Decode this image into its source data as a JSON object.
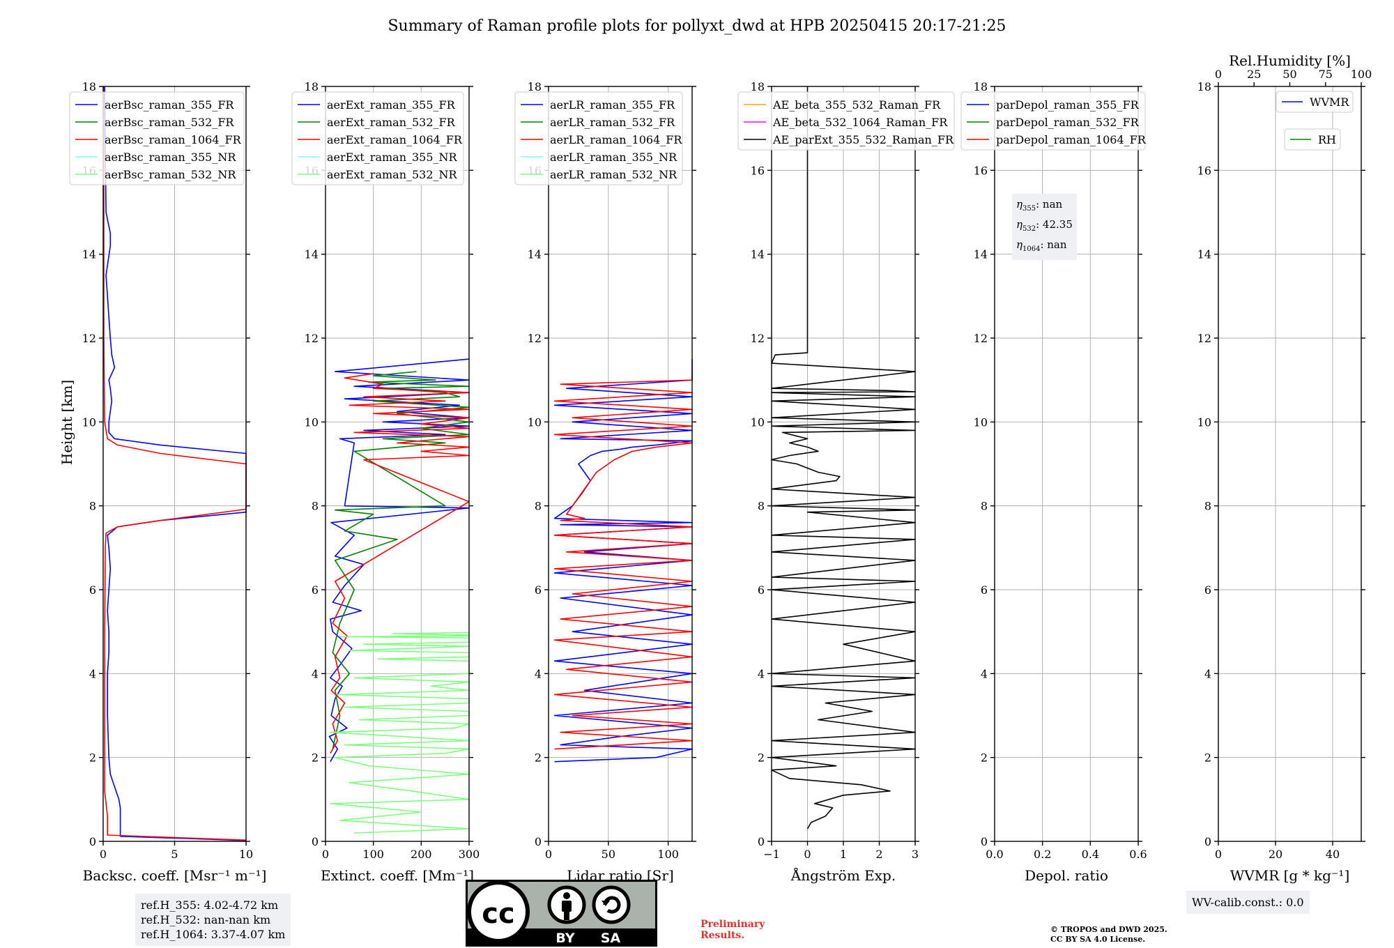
{
  "figure": {
    "title": "Summary of Raman profile plots for pollyxt_dwd at HPB 20250415 20:17-21:25",
    "ylabel": "Height [km]"
  },
  "colors": {
    "ch355": "#0000ff",
    "ch532": "#008000",
    "ch1064": "#ff0000",
    "nr355": "#7fffff",
    "nr532": "#7fff7f",
    "orange": "#ffa500",
    "magenta": "#ff00ff",
    "black": "#000000"
  },
  "chart_data": [
    {
      "type": "line",
      "xlabel": "Backsc. coeff. [Msr⁻¹ m⁻¹]",
      "xlim": [
        0,
        10
      ],
      "ylim": [
        0,
        18
      ],
      "grid": true,
      "xticks": [
        "0",
        "5",
        "10"
      ],
      "yticks": [
        "0",
        "2",
        "4",
        "6",
        "8",
        "10",
        "12",
        "14",
        "16",
        "18"
      ],
      "legend_placement": "top-left",
      "series": [
        {
          "name": "aerBsc_raman_355_FR",
          "color": "#0000ff",
          "x": [
            10,
            1.2,
            1.2,
            1.1,
            0.8,
            0.5,
            0.4,
            0.3,
            0.3,
            0.4,
            0.4,
            0.3,
            0.4,
            0.5,
            0.4,
            0.3,
            1.0,
            4.0,
            10,
            10,
            4.0,
            0.8,
            0.4,
            0.4,
            0.6,
            0.5,
            0.4,
            0.8,
            0.6,
            0.5,
            0.4,
            0.3,
            0.2,
            0.5,
            0.5,
            0.2,
            0.1
          ],
          "y": [
            0.02,
            0.12,
            0.8,
            1.0,
            1.3,
            1.6,
            2,
            3,
            4,
            4.5,
            5,
            5.5,
            6,
            6.5,
            7,
            7.3,
            7.5,
            7.65,
            7.85,
            9.25,
            9.45,
            9.6,
            9.75,
            10,
            10.5,
            10.8,
            11,
            11.3,
            11.6,
            12,
            12.5,
            13,
            13.5,
            14.2,
            14.5,
            15,
            18
          ]
        },
        {
          "name": "aerBsc_raman_532_FR",
          "color": "#008000",
          "x": [],
          "y": []
        },
        {
          "name": "aerBsc_raman_1064_FR",
          "color": "#ff0000",
          "x": [
            10,
            0.3,
            0.3,
            0.1,
            0.1,
            0.15,
            0.2,
            1.0,
            4.0,
            10,
            10,
            4.0,
            1.0,
            0.3,
            0.1,
            0.05,
            0.05
          ],
          "y": [
            0.03,
            0.15,
            0.6,
            1.2,
            5,
            7,
            7.35,
            7.5,
            7.65,
            7.92,
            9.0,
            9.25,
            9.45,
            9.6,
            10,
            12,
            18
          ]
        },
        {
          "name": "aerBsc_raman_355_NR",
          "color": "#7fffff",
          "x": [],
          "y": []
        },
        {
          "name": "aerBsc_raman_532_NR",
          "color": "#7fff7f",
          "x": [],
          "y": []
        }
      ]
    },
    {
      "type": "line",
      "xlabel": "Extinct. coeff. [Mm⁻¹]",
      "xlim": [
        0,
        300
      ],
      "ylim": [
        0,
        18
      ],
      "grid": true,
      "xticks": [
        "0",
        "100",
        "200",
        "300"
      ],
      "yticks": [
        "0",
        "2",
        "4",
        "6",
        "8",
        "10",
        "12",
        "14",
        "16",
        "18"
      ],
      "legend_placement": "top-left",
      "series": [
        {
          "name": "aerExt_raman_355_FR",
          "color": "#0000ff",
          "x": [
            10,
            25,
            8,
            45,
            12,
            20,
            35,
            10,
            30,
            55,
            15,
            10,
            75,
            15,
            40,
            80,
            20,
            60,
            12,
            300,
            40,
            60,
            30,
            250,
            80,
            300,
            120,
            300,
            150,
            280,
            40,
            300,
            60,
            300,
            20,
            300
          ],
          "y": [
            1.9,
            2.2,
            2.5,
            2.7,
            3.0,
            3.4,
            3.7,
            3.9,
            4.2,
            4.6,
            5.0,
            5.3,
            5.5,
            5.7,
            6.1,
            6.6,
            6.8,
            7.3,
            7.6,
            7.95,
            8.0,
            9.5,
            9.6,
            9.7,
            9.8,
            9.9,
            10.0,
            10.1,
            10.25,
            10.4,
            10.55,
            10.7,
            10.85,
            11.0,
            11.2,
            11.5
          ]
        },
        {
          "name": "aerExt_raman_532_FR",
          "color": "#008000",
          "x": [
            15,
            30,
            20,
            50,
            15,
            30,
            60,
            20,
            150,
            40,
            100,
            20,
            250,
            60,
            250,
            120,
            300,
            200,
            300,
            150,
            300,
            100,
            280,
            250,
            120,
            300,
            90,
            230,
            100,
            190
          ],
          "y": [
            2.2,
            3.0,
            3.6,
            4.0,
            4.5,
            5.2,
            6.0,
            6.7,
            7.2,
            7.4,
            7.8,
            7.9,
            8.0,
            9.3,
            9.5,
            9.6,
            9.7,
            9.85,
            10.0,
            10.2,
            10.35,
            10.5,
            10.6,
            10.7,
            10.8,
            10.85,
            10.95,
            11.0,
            11.1,
            11.2
          ]
        },
        {
          "name": "aerExt_raman_1064_FR",
          "color": "#ff0000",
          "x": [
            10,
            25,
            15,
            40,
            12,
            30,
            20,
            45,
            15,
            40,
            20,
            300,
            80,
            300,
            200,
            300,
            150,
            300,
            60,
            300,
            200,
            300,
            100,
            300,
            50,
            250,
            80,
            300,
            100,
            120,
            40,
            100
          ],
          "y": [
            2.1,
            2.4,
            2.8,
            3.3,
            3.6,
            3.9,
            4.4,
            4.9,
            5.2,
            5.8,
            6.2,
            8.1,
            9.1,
            9.2,
            9.3,
            9.4,
            9.5,
            9.65,
            9.75,
            9.85,
            9.95,
            10.1,
            10.2,
            10.3,
            10.4,
            10.5,
            10.6,
            10.7,
            10.8,
            10.9,
            11.05,
            11.15
          ]
        },
        {
          "name": "aerExt_raman_355_NR",
          "color": "#7fffff",
          "x": [],
          "y": []
        },
        {
          "name": "aerExt_raman_532_NR",
          "color": "#7fff7f",
          "x": [
            60,
            300,
            30,
            200,
            10,
            300,
            180,
            50,
            300,
            90,
            20,
            250,
            300,
            40,
            300,
            160,
            10,
            270,
            300,
            70,
            300,
            300,
            40,
            300,
            300,
            25,
            300,
            220,
            300,
            60,
            300,
            300,
            300,
            300,
            110,
            300,
            300,
            50,
            180,
            300,
            80,
            300,
            300,
            300,
            30,
            300,
            300,
            140,
            300
          ],
          "y": [
            0.2,
            0.3,
            0.5,
            0.7,
            0.9,
            1.0,
            1.2,
            1.4,
            1.6,
            1.8,
            2.0,
            2.1,
            2.2,
            2.3,
            2.4,
            2.5,
            2.6,
            2.7,
            2.8,
            2.9,
            3.0,
            3.1,
            3.2,
            3.3,
            3.4,
            3.5,
            3.6,
            3.7,
            3.8,
            3.9,
            4.0,
            4.1,
            4.2,
            4.3,
            4.35,
            4.4,
            4.5,
            4.55,
            4.6,
            4.65,
            4.7,
            4.75,
            4.8,
            4.85,
            4.88,
            4.9,
            4.92,
            4.95,
            4.98
          ]
        }
      ]
    },
    {
      "type": "line",
      "xlabel": "Lidar ratio [Sr]",
      "xlim": [
        0,
        120
      ],
      "ylim": [
        0,
        18
      ],
      "grid": true,
      "xticks": [
        "0",
        "50",
        "100"
      ],
      "yticks": [
        "0",
        "2",
        "4",
        "6",
        "8",
        "10",
        "12",
        "14",
        "16",
        "18"
      ],
      "legend_placement": "top-left",
      "series": [
        {
          "name": "aerLR_raman_355_FR",
          "color": "#0000ff",
          "x": [
            5,
            90,
            120,
            10,
            60,
            120,
            5,
            120,
            30,
            120,
            5,
            120,
            20,
            120,
            10,
            120,
            5,
            120,
            30,
            120,
            5,
            120,
            10,
            120,
            5,
            10,
            20,
            28,
            35,
            30,
            25,
            35,
            45,
            60,
            70,
            90,
            120,
            10,
            120,
            20,
            120,
            5,
            120,
            15,
            120,
            120
          ],
          "y": [
            1.9,
            2.0,
            2.2,
            2.3,
            2.5,
            2.7,
            3.0,
            3.3,
            3.6,
            4.0,
            4.3,
            4.7,
            5.0,
            5.4,
            5.8,
            6.1,
            6.4,
            6.7,
            6.9,
            7.1,
            7.3,
            7.5,
            7.55,
            7.6,
            7.7,
            7.8,
            8.0,
            8.3,
            8.6,
            8.8,
            9.0,
            9.2,
            9.3,
            9.35,
            9.4,
            9.45,
            9.55,
            9.6,
            9.8,
            10.0,
            10.2,
            10.4,
            10.6,
            10.8,
            11.0,
            11.5
          ]
        },
        {
          "name": "aerLR_raman_532_FR",
          "color": "#008000",
          "x": [],
          "y": []
        },
        {
          "name": "aerLR_raman_1064_FR",
          "color": "#ff0000",
          "x": [
            5,
            120,
            10,
            120,
            20,
            120,
            5,
            120,
            15,
            120,
            5,
            120,
            10,
            120,
            20,
            120,
            5,
            120,
            15,
            120,
            5,
            120,
            10,
            30,
            15,
            20,
            30,
            40,
            55,
            70,
            90,
            120,
            5,
            120,
            20,
            120,
            5,
            120,
            10,
            120,
            120
          ],
          "y": [
            2.2,
            2.4,
            2.6,
            2.8,
            3.0,
            3.2,
            3.5,
            3.8,
            4.1,
            4.4,
            4.8,
            5.0,
            5.3,
            5.6,
            5.9,
            6.2,
            6.5,
            6.7,
            6.9,
            7.1,
            7.3,
            7.5,
            7.65,
            7.7,
            7.8,
            8.0,
            8.4,
            8.8,
            9.1,
            9.3,
            9.4,
            9.5,
            9.7,
            9.9,
            10.1,
            10.3,
            10.5,
            10.7,
            10.9,
            11.0,
            11.15
          ]
        },
        {
          "name": "aerLR_raman_355_NR",
          "color": "#7fffff",
          "x": [],
          "y": []
        },
        {
          "name": "aerLR_raman_532_NR",
          "color": "#7fff7f",
          "x": [],
          "y": []
        }
      ]
    },
    {
      "type": "line",
      "xlabel": "Ångström Exp.",
      "xlim": [
        -1,
        3
      ],
      "ylim": [
        0,
        18
      ],
      "grid": true,
      "xticks": [
        "−1",
        "0",
        "1",
        "2",
        "3"
      ],
      "yticks": [
        "0",
        "2",
        "4",
        "6",
        "8",
        "10",
        "12",
        "14",
        "16",
        "18"
      ],
      "legend_placement": "top-left",
      "series": [
        {
          "name": "AE_beta_355_532_Raman_FR",
          "color": "#ffa500",
          "x": [],
          "y": []
        },
        {
          "name": "AE_beta_532_1064_Raman_FR",
          "color": "#ff00ff",
          "x": [],
          "y": []
        },
        {
          "name": "AE_parExt_355_532_Raman_FR",
          "color": "#000000",
          "x": [
            0.0,
            0.1,
            0.5,
            0.7,
            0.2,
            1.0,
            2.3,
            1.5,
            -0.5,
            -1.0,
            0.8,
            -1.0,
            3,
            -1.0,
            3,
            0.3,
            1.8,
            0.5,
            3,
            -1.0,
            3,
            -1.0,
            3,
            1.0,
            3,
            -1.0,
            3,
            -1.0,
            3,
            -1.0,
            3,
            -1.0,
            3,
            -1.0,
            3,
            0.0,
            3,
            -1.0,
            3,
            -1.0,
            0.8,
            0.9,
            0.3,
            -0.3,
            -1.0,
            -0.5,
            0.3,
            0.0,
            -0.5,
            0.0,
            -0.7,
            3,
            -1.0,
            3,
            -1.0,
            3,
            -1.0,
            3,
            -1.0,
            3,
            2.2,
            -1.0,
            3,
            -1.0,
            -0.9,
            0.0,
            0.0
          ],
          "y": [
            0.3,
            0.45,
            0.6,
            0.8,
            0.9,
            1.1,
            1.2,
            1.35,
            1.5,
            1.7,
            1.8,
            2.0,
            2.2,
            2.4,
            2.6,
            2.9,
            3.1,
            3.3,
            3.5,
            3.7,
            3.9,
            4.0,
            4.3,
            4.7,
            5.0,
            5.3,
            5.7,
            6.0,
            6.2,
            6.3,
            6.7,
            6.9,
            7.2,
            7.3,
            7.6,
            7.85,
            7.9,
            8.0,
            8.2,
            8.4,
            8.6,
            8.7,
            8.8,
            9.0,
            9.1,
            9.2,
            9.3,
            9.4,
            9.5,
            9.6,
            9.75,
            9.8,
            9.9,
            10.0,
            10.1,
            10.3,
            10.5,
            10.6,
            10.7,
            10.72,
            10.75,
            10.8,
            11.2,
            11.4,
            11.6,
            11.65,
            18
          ]
        }
      ]
    },
    {
      "type": "line",
      "xlabel": "Depol. ratio",
      "xlim": [
        0,
        0.6
      ],
      "ylim": [
        0,
        18
      ],
      "grid": true,
      "xticks": [
        "0.0",
        "0.2",
        "0.4",
        "0.6"
      ],
      "yticks": [
        "0",
        "2",
        "4",
        "6",
        "8",
        "10",
        "12",
        "14",
        "16",
        "18"
      ],
      "legend_placement": "top-left",
      "series": [
        {
          "name": "parDepol_raman_355_FR",
          "color": "#0000ff",
          "x": [],
          "y": []
        },
        {
          "name": "parDepol_raman_532_FR",
          "color": "#008000",
          "x": [],
          "y": []
        },
        {
          "name": "parDepol_raman_1064_FR",
          "color": "#ff0000",
          "x": [],
          "y": []
        }
      ]
    },
    {
      "type": "line",
      "xlabel": "WVMR [g * kg⁻¹]",
      "x2label": "Rel.Humidity [%]",
      "xlim": [
        0,
        50
      ],
      "x2lim": [
        0,
        100
      ],
      "ylim": [
        0,
        18
      ],
      "grid": true,
      "xticks": [
        "0",
        "20",
        "40"
      ],
      "x2ticks": [
        "0",
        "25",
        "50",
        "75",
        "100"
      ],
      "yticks": [
        "0",
        "2",
        "4",
        "6",
        "8",
        "10",
        "12",
        "14",
        "16",
        "18"
      ],
      "legend_placement": "top-right",
      "series": [
        {
          "name": "WVMR",
          "color": "#0000ff",
          "x": [],
          "y": []
        },
        {
          "name": "RH",
          "color": "#008000",
          "x": [],
          "y": []
        }
      ]
    }
  ],
  "annotations": {
    "eta": [
      {
        "sym": "η",
        "sub": "355",
        "val": ": nan"
      },
      {
        "sym": "η",
        "sub": "532",
        "val": ": 42.35"
      },
      {
        "sym": "η",
        "sub": "1064",
        "val": ": nan"
      }
    ],
    "refh": [
      "ref.H_355: 4.02-4.72 km",
      "ref.H_532: nan-nan km",
      "ref.H_1064: 3.37-4.07 km"
    ],
    "wv_calib": "WV-calib.const.: 0.0",
    "preliminary": [
      "Preliminary",
      "Results."
    ],
    "copyright": [
      "© TROPOS and DWD 2025.",
      "CC BY SA 4.0 License."
    ],
    "license_badge": {
      "by": "BY",
      "sa": "SA",
      "cc": "cc"
    }
  }
}
